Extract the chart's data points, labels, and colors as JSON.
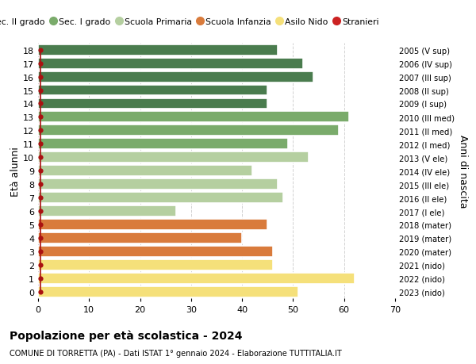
{
  "ages": [
    18,
    17,
    16,
    15,
    14,
    13,
    12,
    11,
    10,
    9,
    8,
    7,
    6,
    5,
    4,
    3,
    2,
    1,
    0
  ],
  "values": [
    47,
    52,
    54,
    45,
    45,
    61,
    59,
    49,
    53,
    42,
    47,
    48,
    27,
    45,
    40,
    46,
    46,
    62,
    51
  ],
  "right_labels": [
    "2005 (V sup)",
    "2006 (IV sup)",
    "2007 (III sup)",
    "2008 (II sup)",
    "2009 (I sup)",
    "2010 (III med)",
    "2011 (II med)",
    "2012 (I med)",
    "2013 (V ele)",
    "2014 (IV ele)",
    "2015 (III ele)",
    "2016 (II ele)",
    "2017 (I ele)",
    "2018 (mater)",
    "2019 (mater)",
    "2020 (mater)",
    "2021 (nido)",
    "2022 (nido)",
    "2023 (nido)"
  ],
  "bar_colors": [
    "#4a7c4e",
    "#4a7c4e",
    "#4a7c4e",
    "#4a7c4e",
    "#4a7c4e",
    "#7aab6b",
    "#7aab6b",
    "#7aab6b",
    "#b5cfa0",
    "#b5cfa0",
    "#b5cfa0",
    "#b5cfa0",
    "#b5cfa0",
    "#d97b3c",
    "#d97b3c",
    "#d97b3c",
    "#f5e07a",
    "#f5e07a",
    "#f5e07a"
  ],
  "alt_colors": [
    "#5a8c5e",
    "#5a8c5e",
    "#5a8c5e",
    "#5a8c5e",
    "#5a8c5e",
    "#8abb7b",
    "#8abb7b",
    "#8abb7b",
    "#c5dfb0",
    "#c5dfb0",
    "#c5dfb0",
    "#c5dfb0",
    "#c5dfb0",
    "#e98b4c",
    "#e98b4c",
    "#e98b4c",
    "#ffe898",
    "#ffe898",
    "#ffe898"
  ],
  "legend_labels": [
    "Sec. II grado",
    "Sec. I grado",
    "Scuola Primaria",
    "Scuola Infanzia",
    "Asilo Nido",
    "Stranieri"
  ],
  "legend_colors": [
    "#4a7c4e",
    "#7aab6b",
    "#b5cfa0",
    "#d97b3c",
    "#f5e07a",
    "#cc2222"
  ],
  "ylabel": "Età alunni",
  "right_ylabel": "Anni di nascita",
  "title": "Popolazione per età scolastica - 2024",
  "subtitle": "COMUNE DI TORRETTA (PA) - Dati ISTAT 1° gennaio 2024 - Elaborazione TUTTITALIA.IT",
  "xlim": [
    0,
    70
  ],
  "background_color": "#ffffff",
  "grid_color": "#cccccc",
  "stranieri_color": "#aa1111"
}
